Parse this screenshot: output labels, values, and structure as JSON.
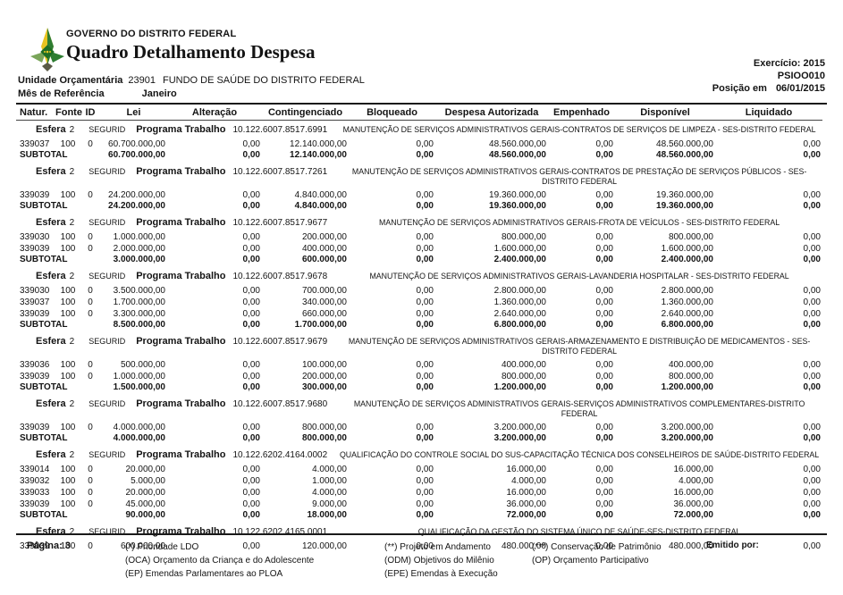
{
  "header": {
    "government": "GOVERNO DO DISTRITO FEDERAL",
    "title": "Quadro Detalhamento Despesa",
    "exercicio": "Exercício: 2015",
    "report_code": "PSIOO010",
    "posicao_label": "Posição em",
    "posicao_value": "06/01/2015",
    "unidade_label": "Unidade Orçamentária",
    "unidade_code": "23901",
    "unidade_name": "FUNDO DE SAÚDE DO DISTRITO FEDERAL",
    "mes_label": "Mês de Referência",
    "mes_value": "Janeiro"
  },
  "logo": {
    "name": "gdf-emblem",
    "green": "#2e7d32",
    "yellow": "#e8c321"
  },
  "table": {
    "columns": [
      "Natur.",
      "Fonte",
      "ID",
      "Lei",
      "Alteração",
      "Contingenciado",
      "Bloqueado",
      "Despesa Autorizada",
      "Empenhado",
      "Disponível",
      "Liquidado"
    ],
    "column_keys": [
      "natur",
      "fonte",
      "id",
      "lei",
      "alteracao",
      "contingenciado",
      "bloqueado",
      "despesa-autorizada",
      "empenhado",
      "disponivel",
      "liquidado"
    ],
    "group_labels": {
      "esfera_label": "Esfera",
      "esfera_value": "2",
      "segurid": "SEGURID",
      "programa_label": "Programa Trabalho"
    },
    "subtotal_label": "SUBTOTAL",
    "groups": [
      {
        "code": "10.122.6007.8517.6991",
        "description": "MANUTENÇÃO DE SERVIÇOS ADMINISTRATIVOS GERAIS-CONTRATOS DE SERVIÇOS DE LIMPEZA - SES-DISTRITO FEDERAL",
        "rows": [
          [
            "339037",
            "100",
            "0",
            "60.700.000,00",
            "0,00",
            "12.140.000,00",
            "0,00",
            "48.560.000,00",
            "0,00",
            "48.560.000,00",
            "0,00"
          ]
        ],
        "subtotal": [
          "60.700.000,00",
          "0,00",
          "12.140.000,00",
          "0,00",
          "48.560.000,00",
          "0,00",
          "48.560.000,00",
          "0,00"
        ]
      },
      {
        "code": "10.122.6007.8517.7261",
        "description": "MANUTENÇÃO DE SERVIÇOS ADMINISTRATIVOS GERAIS-CONTRATOS DE PRESTAÇÃO DE SERVIÇOS PÚBLICOS - SES-DISTRITO FEDERAL",
        "rows": [
          [
            "339039",
            "100",
            "0",
            "24.200.000,00",
            "0,00",
            "4.840.000,00",
            "0,00",
            "19.360.000,00",
            "0,00",
            "19.360.000,00",
            "0,00"
          ]
        ],
        "subtotal": [
          "24.200.000,00",
          "0,00",
          "4.840.000,00",
          "0,00",
          "19.360.000,00",
          "0,00",
          "19.360.000,00",
          "0,00"
        ]
      },
      {
        "code": "10.122.6007.8517.9677",
        "description": "MANUTENÇÃO DE SERVIÇOS ADMINISTRATIVOS GERAIS-FROTA DE VEÍCULOS - SES-DISTRITO FEDERAL",
        "rows": [
          [
            "339030",
            "100",
            "0",
            "1.000.000,00",
            "0,00",
            "200.000,00",
            "0,00",
            "800.000,00",
            "0,00",
            "800.000,00",
            "0,00"
          ],
          [
            "339039",
            "100",
            "0",
            "2.000.000,00",
            "0,00",
            "400.000,00",
            "0,00",
            "1.600.000,00",
            "0,00",
            "1.600.000,00",
            "0,00"
          ]
        ],
        "subtotal": [
          "3.000.000,00",
          "0,00",
          "600.000,00",
          "0,00",
          "2.400.000,00",
          "0,00",
          "2.400.000,00",
          "0,00"
        ]
      },
      {
        "code": "10.122.6007.8517.9678",
        "description": "MANUTENÇÃO DE SERVIÇOS ADMINISTRATIVOS GERAIS-LAVANDERIA HOSPITALAR - SES-DISTRITO FEDERAL",
        "rows": [
          [
            "339030",
            "100",
            "0",
            "3.500.000,00",
            "0,00",
            "700.000,00",
            "0,00",
            "2.800.000,00",
            "0,00",
            "2.800.000,00",
            "0,00"
          ],
          [
            "339037",
            "100",
            "0",
            "1.700.000,00",
            "0,00",
            "340.000,00",
            "0,00",
            "1.360.000,00",
            "0,00",
            "1.360.000,00",
            "0,00"
          ],
          [
            "339039",
            "100",
            "0",
            "3.300.000,00",
            "0,00",
            "660.000,00",
            "0,00",
            "2.640.000,00",
            "0,00",
            "2.640.000,00",
            "0,00"
          ]
        ],
        "subtotal": [
          "8.500.000,00",
          "0,00",
          "1.700.000,00",
          "0,00",
          "6.800.000,00",
          "0,00",
          "6.800.000,00",
          "0,00"
        ]
      },
      {
        "code": "10.122.6007.8517.9679",
        "description": "MANUTENÇÃO DE SERVIÇOS ADMINISTRATIVOS GERAIS-ARMAZENAMENTO E DISTRIBUIÇÃO DE MEDICAMENTOS - SES-DISTRITO FEDERAL",
        "rows": [
          [
            "339036",
            "100",
            "0",
            "500.000,00",
            "0,00",
            "100.000,00",
            "0,00",
            "400.000,00",
            "0,00",
            "400.000,00",
            "0,00"
          ],
          [
            "339039",
            "100",
            "0",
            "1.000.000,00",
            "0,00",
            "200.000,00",
            "0,00",
            "800.000,00",
            "0,00",
            "800.000,00",
            "0,00"
          ]
        ],
        "subtotal": [
          "1.500.000,00",
          "0,00",
          "300.000,00",
          "0,00",
          "1.200.000,00",
          "0,00",
          "1.200.000,00",
          "0,00"
        ]
      },
      {
        "code": "10.122.6007.8517.9680",
        "description": "MANUTENÇÃO DE SERVIÇOS ADMINISTRATIVOS GERAIS-SERVIÇOS ADMINISTRATIVOS COMPLEMENTARES-DISTRITO FEDERAL",
        "rows": [
          [
            "339039",
            "100",
            "0",
            "4.000.000,00",
            "0,00",
            "800.000,00",
            "0,00",
            "3.200.000,00",
            "0,00",
            "3.200.000,00",
            "0,00"
          ]
        ],
        "subtotal": [
          "4.000.000,00",
          "0,00",
          "800.000,00",
          "0,00",
          "3.200.000,00",
          "0,00",
          "3.200.000,00",
          "0,00"
        ]
      },
      {
        "code": "10.122.6202.4164.0002",
        "description": "QUALIFICAÇÃO DO CONTROLE SOCIAL DO SUS-CAPACITAÇÃO TÉCNICA DOS CONSELHEIROS DE SAÚDE-DISTRITO FEDERAL",
        "rows": [
          [
            "339014",
            "100",
            "0",
            "20.000,00",
            "0,00",
            "4.000,00",
            "0,00",
            "16.000,00",
            "0,00",
            "16.000,00",
            "0,00"
          ],
          [
            "339032",
            "100",
            "0",
            "5.000,00",
            "0,00",
            "1.000,00",
            "0,00",
            "4.000,00",
            "0,00",
            "4.000,00",
            "0,00"
          ],
          [
            "339033",
            "100",
            "0",
            "20.000,00",
            "0,00",
            "4.000,00",
            "0,00",
            "16.000,00",
            "0,00",
            "16.000,00",
            "0,00"
          ],
          [
            "339039",
            "100",
            "0",
            "45.000,00",
            "0,00",
            "9.000,00",
            "0,00",
            "36.000,00",
            "0,00",
            "36.000,00",
            "0,00"
          ]
        ],
        "subtotal": [
          "90.000,00",
          "0,00",
          "18.000,00",
          "0,00",
          "72.000,00",
          "0,00",
          "72.000,00",
          "0,00"
        ]
      },
      {
        "code": "10.122.6202.4165.0001",
        "description": "QUALIFICAÇÃO DA GESTÃO DO SISTEMA ÚNICO DE SAÚDE-SES-DISTRITO FEDERAL",
        "rows": [
          [
            "339039",
            "100",
            "0",
            "600.000,00",
            "0,00",
            "120.000,00",
            "0,00",
            "480.000,00",
            "0,00",
            "480.000,00",
            "0,00"
          ]
        ],
        "subtotal": null
      }
    ]
  },
  "footer": {
    "pagina_label": "Página:",
    "pagina_value": "3",
    "legend1": [
      "(*)  Prioridade LDO",
      "(OCA)  Orçamento da Criança e do Adolescente",
      "(EP)  Emendas Parlamentares ao PLOA"
    ],
    "legend2": [
      "(**)  Projeto em Andamento",
      "(ODM) Objetivos do Milênio",
      "(EPE) Emendas à Execução"
    ],
    "legend3": [
      "(***)  Conservação de Patrimônio",
      "(OP) Orçamento Participativo"
    ],
    "emitido_label": "Emitido por:"
  }
}
